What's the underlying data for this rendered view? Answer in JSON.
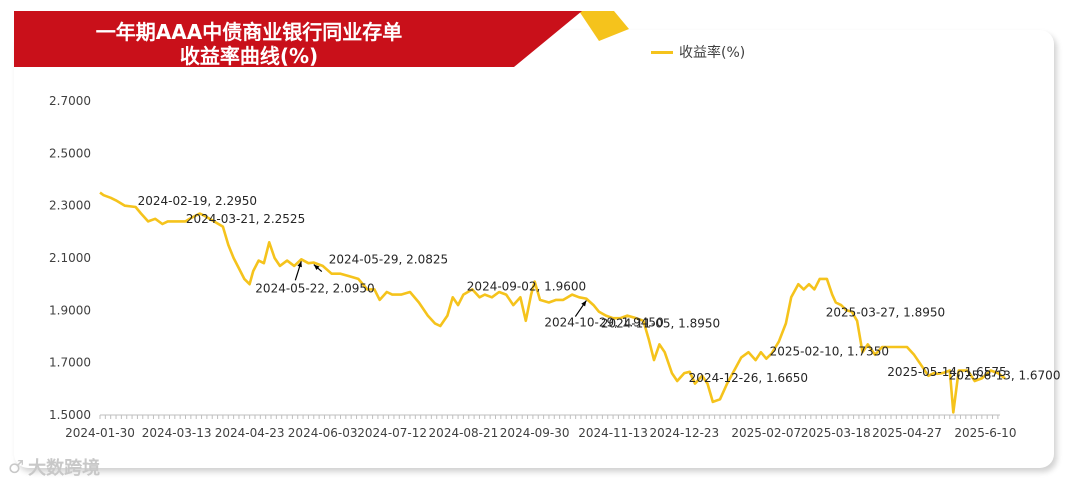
{
  "title": {
    "line1": "一年期AAA中债商业银行同业存单",
    "line2": "收益率曲线(%)"
  },
  "legend": {
    "label": "收益率(%)"
  },
  "watermark": {
    "text": "大数跨境"
  },
  "colors": {
    "banner": "#C9101A",
    "accent": "#F5C31C",
    "line": "#F5C31C"
  },
  "chart_data": {
    "type": "line",
    "title": "一年期AAA中债商业银行同业存单收益率曲线(%)",
    "xlabel": "",
    "ylabel": "",
    "ylim": [
      1.5,
      2.7
    ],
    "yticks": [
      "2.7000",
      "2.5000",
      "2.3000",
      "2.1000",
      "1.9000",
      "1.7000",
      "1.5000"
    ],
    "xticks": [
      "2024-01-30",
      "2024-03-13",
      "2024-04-23",
      "2024-06-03",
      "2024-07-12",
      "2024-08-21",
      "2024-09-30",
      "2024-11-13",
      "2024-12-23",
      "2025-02-07",
      "2025-03-18",
      "2025-04-27",
      "2025-6-10"
    ],
    "legend_position": "top-right",
    "grid": false,
    "series": [
      {
        "name": "收益率(%)",
        "points": [
          [
            "2024-01-30",
            2.35
          ],
          [
            "2024-02-01",
            2.34
          ],
          [
            "2024-02-05",
            2.33
          ],
          [
            "2024-02-08",
            2.32
          ],
          [
            "2024-02-13",
            2.3
          ],
          [
            "2024-02-19",
            2.295
          ],
          [
            "2024-02-22",
            2.27
          ],
          [
            "2024-02-26",
            2.24
          ],
          [
            "2024-03-01",
            2.25
          ],
          [
            "2024-03-05",
            2.23
          ],
          [
            "2024-03-08",
            2.24
          ],
          [
            "2024-03-13",
            2.24
          ],
          [
            "2024-03-18",
            2.24
          ],
          [
            "2024-03-21",
            2.2525
          ],
          [
            "2024-03-26",
            2.27
          ],
          [
            "2024-03-29",
            2.26
          ],
          [
            "2024-04-03",
            2.24
          ],
          [
            "2024-04-08",
            2.22
          ],
          [
            "2024-04-11",
            2.15
          ],
          [
            "2024-04-14",
            2.1
          ],
          [
            "2024-04-17",
            2.06
          ],
          [
            "2024-04-20",
            2.02
          ],
          [
            "2024-04-23",
            2.0
          ],
          [
            "2024-04-25",
            2.05
          ],
          [
            "2024-04-28",
            2.09
          ],
          [
            "2024-05-01",
            2.08
          ],
          [
            "2024-05-04",
            2.16
          ],
          [
            "2024-05-07",
            2.1
          ],
          [
            "2024-05-10",
            2.07
          ],
          [
            "2024-05-14",
            2.09
          ],
          [
            "2024-05-18",
            2.07
          ],
          [
            "2024-05-22",
            2.095
          ],
          [
            "2024-05-26",
            2.08
          ],
          [
            "2024-05-29",
            2.0825
          ],
          [
            "2024-06-03",
            2.07
          ],
          [
            "2024-06-08",
            2.04
          ],
          [
            "2024-06-13",
            2.04
          ],
          [
            "2024-06-18",
            2.03
          ],
          [
            "2024-06-23",
            2.02
          ],
          [
            "2024-06-28",
            1.98
          ],
          [
            "2024-07-02",
            1.98
          ],
          [
            "2024-07-05",
            1.94
          ],
          [
            "2024-07-09",
            1.97
          ],
          [
            "2024-07-12",
            1.96
          ],
          [
            "2024-07-17",
            1.96
          ],
          [
            "2024-07-22",
            1.97
          ],
          [
            "2024-07-27",
            1.93
          ],
          [
            "2024-08-01",
            1.88
          ],
          [
            "2024-08-05",
            1.85
          ],
          [
            "2024-08-08",
            1.84
          ],
          [
            "2024-08-12",
            1.88
          ],
          [
            "2024-08-15",
            1.95
          ],
          [
            "2024-08-18",
            1.92
          ],
          [
            "2024-08-21",
            1.96
          ],
          [
            "2024-08-26",
            1.98
          ],
          [
            "2024-08-30",
            1.95
          ],
          [
            "2024-09-02",
            1.96
          ],
          [
            "2024-09-06",
            1.95
          ],
          [
            "2024-09-10",
            1.97
          ],
          [
            "2024-09-14",
            1.96
          ],
          [
            "2024-09-18",
            1.92
          ],
          [
            "2024-09-22",
            1.95
          ],
          [
            "2024-09-25",
            1.86
          ],
          [
            "2024-09-28",
            1.96
          ],
          [
            "2024-09-30",
            2.01
          ],
          [
            "2024-10-03",
            1.94
          ],
          [
            "2024-10-08",
            1.93
          ],
          [
            "2024-10-12",
            1.94
          ],
          [
            "2024-10-16",
            1.94
          ],
          [
            "2024-10-21",
            1.96
          ],
          [
            "2024-10-25",
            1.95
          ],
          [
            "2024-10-29",
            1.945
          ],
          [
            "2024-11-02",
            1.92
          ],
          [
            "2024-11-05",
            1.895
          ],
          [
            "2024-11-09",
            1.88
          ],
          [
            "2024-11-13",
            1.87
          ],
          [
            "2024-11-17",
            1.87
          ],
          [
            "2024-11-21",
            1.88
          ],
          [
            "2024-11-26",
            1.87
          ],
          [
            "2024-11-30",
            1.86
          ],
          [
            "2024-12-03",
            1.79
          ],
          [
            "2024-12-06",
            1.71
          ],
          [
            "2024-12-09",
            1.77
          ],
          [
            "2024-12-12",
            1.74
          ],
          [
            "2024-12-16",
            1.66
          ],
          [
            "2024-12-19",
            1.63
          ],
          [
            "2024-12-23",
            1.66
          ],
          [
            "2024-12-26",
            1.665
          ],
          [
            "2024-12-29",
            1.62
          ],
          [
            "2025-01-02",
            1.65
          ],
          [
            "2025-01-05",
            1.62
          ],
          [
            "2025-01-08",
            1.55
          ],
          [
            "2025-01-12",
            1.56
          ],
          [
            "2025-01-16",
            1.62
          ],
          [
            "2025-01-20",
            1.67
          ],
          [
            "2025-01-24",
            1.72
          ],
          [
            "2025-01-28",
            1.74
          ],
          [
            "2025-02-01",
            1.71
          ],
          [
            "2025-02-04",
            1.74
          ],
          [
            "2025-02-07",
            1.715
          ],
          [
            "2025-02-10",
            1.735
          ],
          [
            "2025-02-14",
            1.78
          ],
          [
            "2025-02-18",
            1.85
          ],
          [
            "2025-02-21",
            1.95
          ],
          [
            "2025-02-25",
            2.0
          ],
          [
            "2025-02-28",
            1.98
          ],
          [
            "2025-03-03",
            2.0
          ],
          [
            "2025-03-06",
            1.98
          ],
          [
            "2025-03-09",
            2.02
          ],
          [
            "2025-03-13",
            2.02
          ],
          [
            "2025-03-16",
            1.96
          ],
          [
            "2025-03-18",
            1.93
          ],
          [
            "2025-03-21",
            1.92
          ],
          [
            "2025-03-24",
            1.9
          ],
          [
            "2025-03-27",
            1.895
          ],
          [
            "2025-03-30",
            1.86
          ],
          [
            "2025-04-02",
            1.74
          ],
          [
            "2025-04-05",
            1.77
          ],
          [
            "2025-04-09",
            1.73
          ],
          [
            "2025-04-13",
            1.76
          ],
          [
            "2025-04-17",
            1.76
          ],
          [
            "2025-04-21",
            1.76
          ],
          [
            "2025-04-27",
            1.76
          ],
          [
            "2025-05-01",
            1.73
          ],
          [
            "2025-05-05",
            1.69
          ],
          [
            "2025-05-09",
            1.65
          ],
          [
            "2025-05-12",
            1.66
          ],
          [
            "2025-05-14",
            1.6575
          ],
          [
            "2025-05-17",
            1.66
          ],
          [
            "2025-05-21",
            1.67
          ],
          [
            "2025-05-23",
            1.51
          ],
          [
            "2025-05-26",
            1.67
          ],
          [
            "2025-05-31",
            1.67
          ],
          [
            "2025-06-04",
            1.63
          ],
          [
            "2025-06-08",
            1.64
          ],
          [
            "2025-06-13",
            1.67
          ],
          [
            "2025-06-17",
            1.66
          ],
          [
            "2025-06-21",
            1.64
          ]
        ]
      }
    ],
    "annotations": [
      {
        "text": "2024-02-19, 2.2950",
        "x": "2024-02-19",
        "y": 2.295
      },
      {
        "text": "2024-03-21, 2.2525",
        "x": "2024-03-21",
        "y": 2.2525
      },
      {
        "text": "2024-05-22, 2.0950",
        "x": "2024-05-22",
        "y": 2.095,
        "arrow": true
      },
      {
        "text": "2024-05-29, 2.0825",
        "x": "2024-05-29",
        "y": 2.0825,
        "arrow": true
      },
      {
        "text": "2024-09-02, 1.9600",
        "x": "2024-09-02",
        "y": 1.96
      },
      {
        "text": "2024-10-29, 1.9450",
        "x": "2024-10-29",
        "y": 1.945,
        "arrow": true
      },
      {
        "text": "2024-11-05, 1.8950",
        "x": "2024-11-05",
        "y": 1.895
      },
      {
        "text": "2024-12-26, 1.6650",
        "x": "2024-12-26",
        "y": 1.665
      },
      {
        "text": "2025-02-10, 1.7350",
        "x": "2025-02-10",
        "y": 1.735
      },
      {
        "text": "2025-03-27, 1.8950",
        "x": "2025-03-27",
        "y": 1.895
      },
      {
        "text": "2025-05-14, 1.6575",
        "x": "2025-05-14",
        "y": 1.6575
      },
      {
        "text": "2025-6-13, 1.6700",
        "x": "2025-06-13",
        "y": 1.67
      }
    ]
  }
}
